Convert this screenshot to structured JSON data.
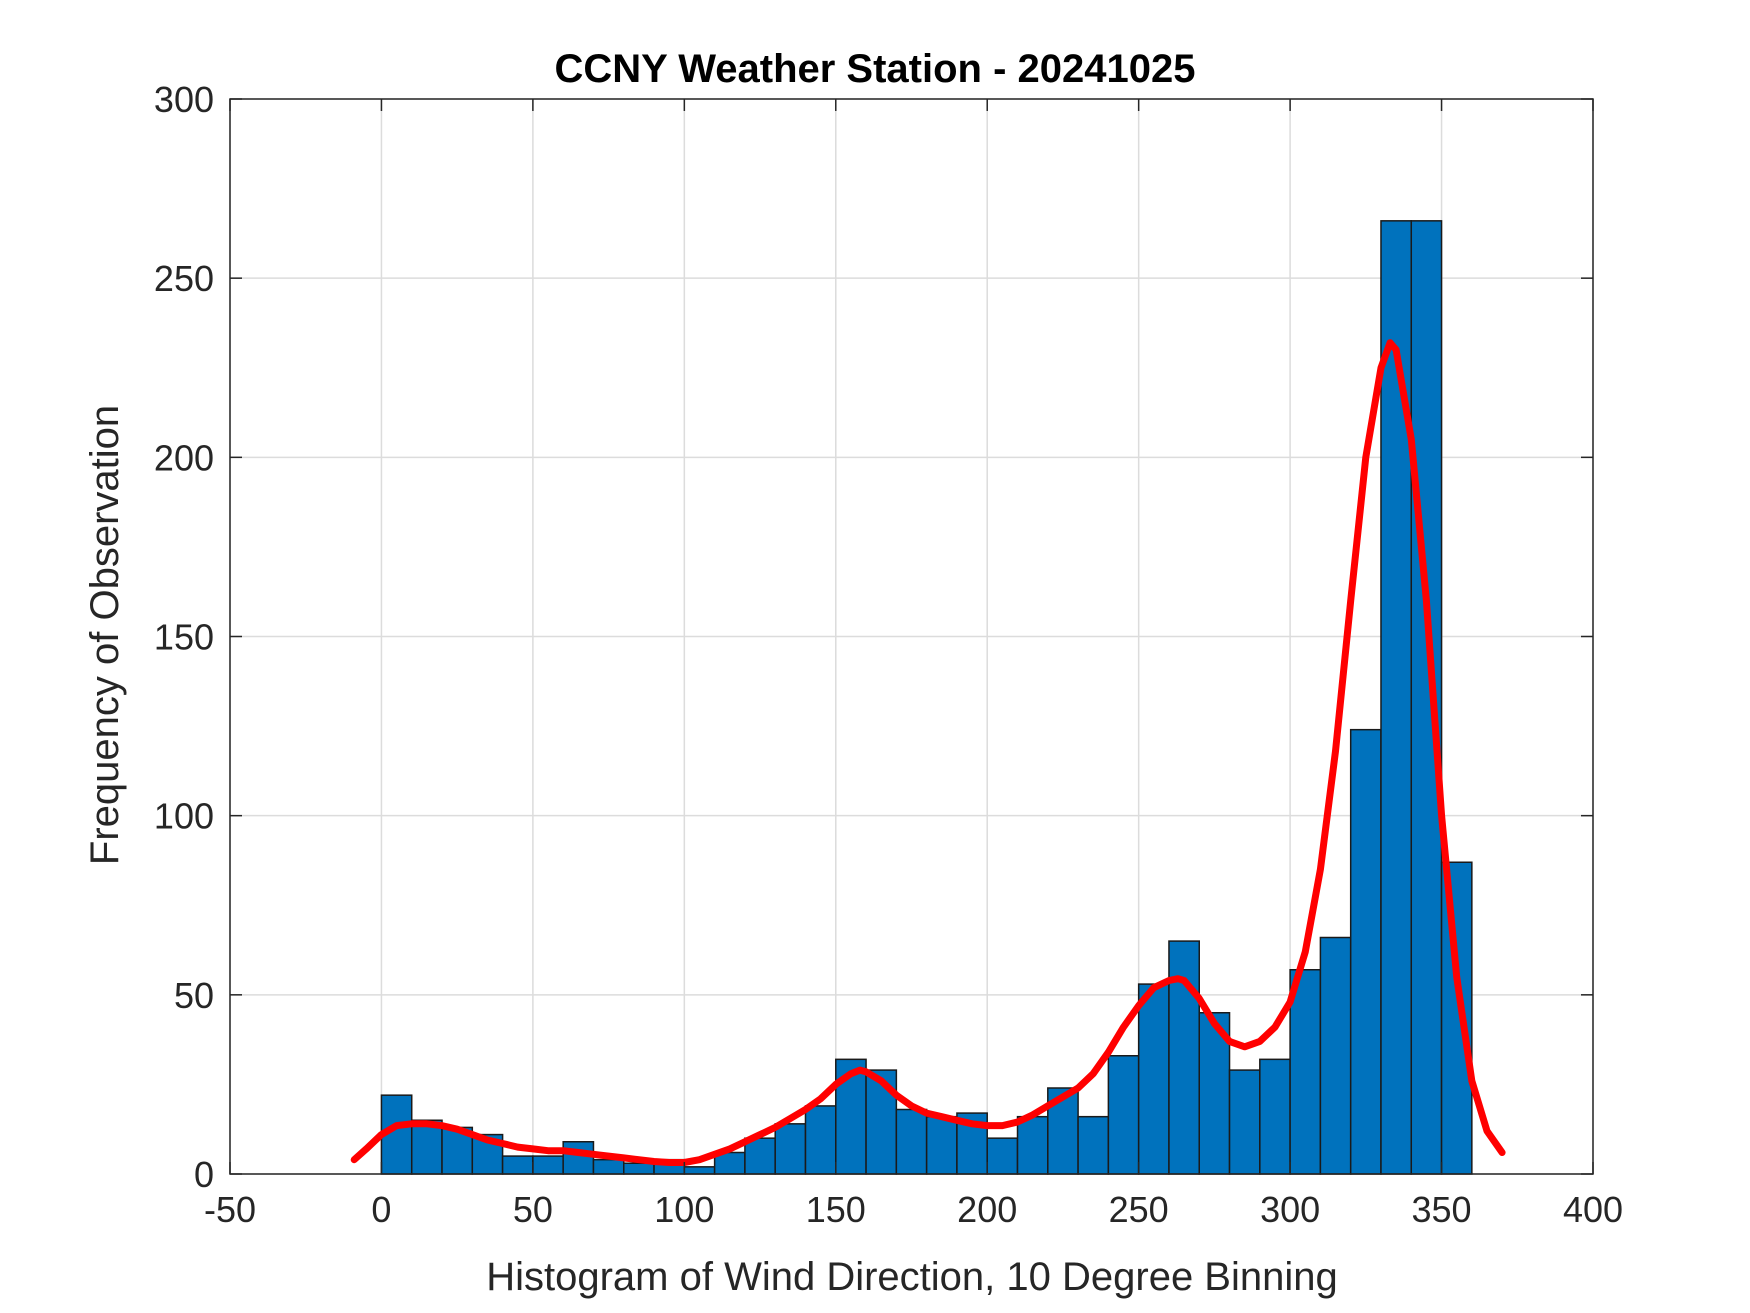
{
  "chart_data": {
    "type": "bar",
    "title": "CCNY Weather Station - 20241025",
    "xlabel": "Histogram of Wind Direction, 10 Degree Binning",
    "ylabel": "Frequency of Observation",
    "xlim": [
      -50,
      400
    ],
    "ylim": [
      0,
      300
    ],
    "xticks": [
      -50,
      0,
      50,
      100,
      150,
      200,
      250,
      300,
      350,
      400
    ],
    "yticks": [
      0,
      50,
      100,
      150,
      200,
      250,
      300
    ],
    "grid": true,
    "bin_width": 10,
    "bin_edges_start": [
      0,
      10,
      20,
      30,
      40,
      50,
      60,
      70,
      80,
      90,
      100,
      110,
      120,
      130,
      140,
      150,
      160,
      170,
      180,
      190,
      200,
      210,
      220,
      230,
      240,
      250,
      260,
      270,
      280,
      290,
      300,
      310,
      320,
      330,
      340,
      350
    ],
    "values": [
      22,
      15,
      13,
      11,
      5,
      5,
      9,
      4,
      3,
      4,
      2,
      6,
      10,
      14,
      19,
      32,
      29,
      18,
      16,
      17,
      10,
      16,
      24,
      16,
      33,
      53,
      65,
      45,
      29,
      32,
      57,
      66,
      124,
      266,
      266,
      87
    ],
    "bar_color": "#0072BD",
    "series": [
      {
        "type": "line",
        "color": "#FF0000",
        "x": [
          -9,
          -5,
          0,
          5,
          10,
          15,
          20,
          25,
          30,
          35,
          40,
          45,
          50,
          55,
          60,
          65,
          70,
          75,
          80,
          85,
          90,
          95,
          100,
          105,
          110,
          115,
          120,
          125,
          130,
          135,
          140,
          145,
          150,
          155,
          158,
          160,
          165,
          170,
          175,
          180,
          185,
          190,
          195,
          200,
          205,
          210,
          215,
          220,
          225,
          230,
          235,
          240,
          245,
          250,
          255,
          260,
          263,
          265,
          270,
          275,
          280,
          285,
          290,
          295,
          300,
          305,
          310,
          315,
          320,
          325,
          330,
          333,
          335,
          340,
          345,
          350,
          355,
          360,
          365,
          370
        ],
        "y": [
          4,
          7,
          11,
          13.5,
          14,
          14,
          13.5,
          12.5,
          11,
          9.5,
          8.5,
          7.5,
          7,
          6.5,
          6.5,
          6,
          5.5,
          5,
          4.5,
          4,
          3.5,
          3.2,
          3.2,
          4,
          5.5,
          7,
          9,
          11,
          13,
          15.5,
          18,
          21,
          25,
          28,
          29,
          28.5,
          26,
          22,
          19,
          17,
          16,
          15,
          14,
          13.5,
          13.5,
          14.5,
          16.5,
          19,
          21.5,
          24,
          28,
          34,
          41,
          47,
          52,
          54,
          54.5,
          54,
          49,
          42,
          37,
          35.5,
          37,
          41,
          48,
          62,
          85,
          118,
          160,
          200,
          225,
          232,
          230,
          205,
          160,
          100,
          55,
          26,
          12,
          6
        ]
      }
    ]
  }
}
